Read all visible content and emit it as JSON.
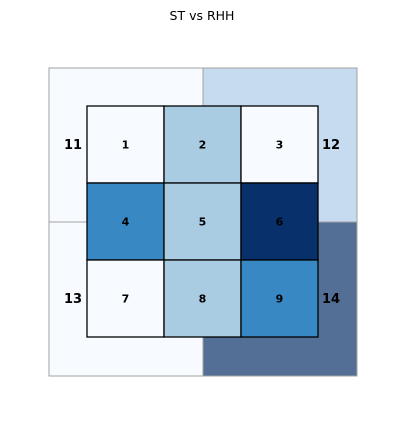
{
  "chart_data": {
    "type": "heatmap",
    "title": "ST vs RHH",
    "outer_zones": [
      {
        "label": "11",
        "position": "top-left",
        "color": "#f7fbff"
      },
      {
        "label": "12",
        "position": "top-right",
        "color": "#c6dbef"
      },
      {
        "label": "13",
        "position": "bottom-left",
        "color": "#f7fbff"
      },
      {
        "label": "14",
        "position": "bottom-right",
        "color": "#536f96"
      }
    ],
    "inner_grid": {
      "rows": 3,
      "cols": 3,
      "labels": [
        "1",
        "2",
        "3",
        "4",
        "5",
        "6",
        "7",
        "8",
        "9"
      ],
      "colors": [
        "#f7fbff",
        "#a9cce3",
        "#f7fbff",
        "#3888c4",
        "#a9cce3",
        "#08306b",
        "#f7fbff",
        "#a9cce3",
        "#3888c4"
      ]
    }
  }
}
